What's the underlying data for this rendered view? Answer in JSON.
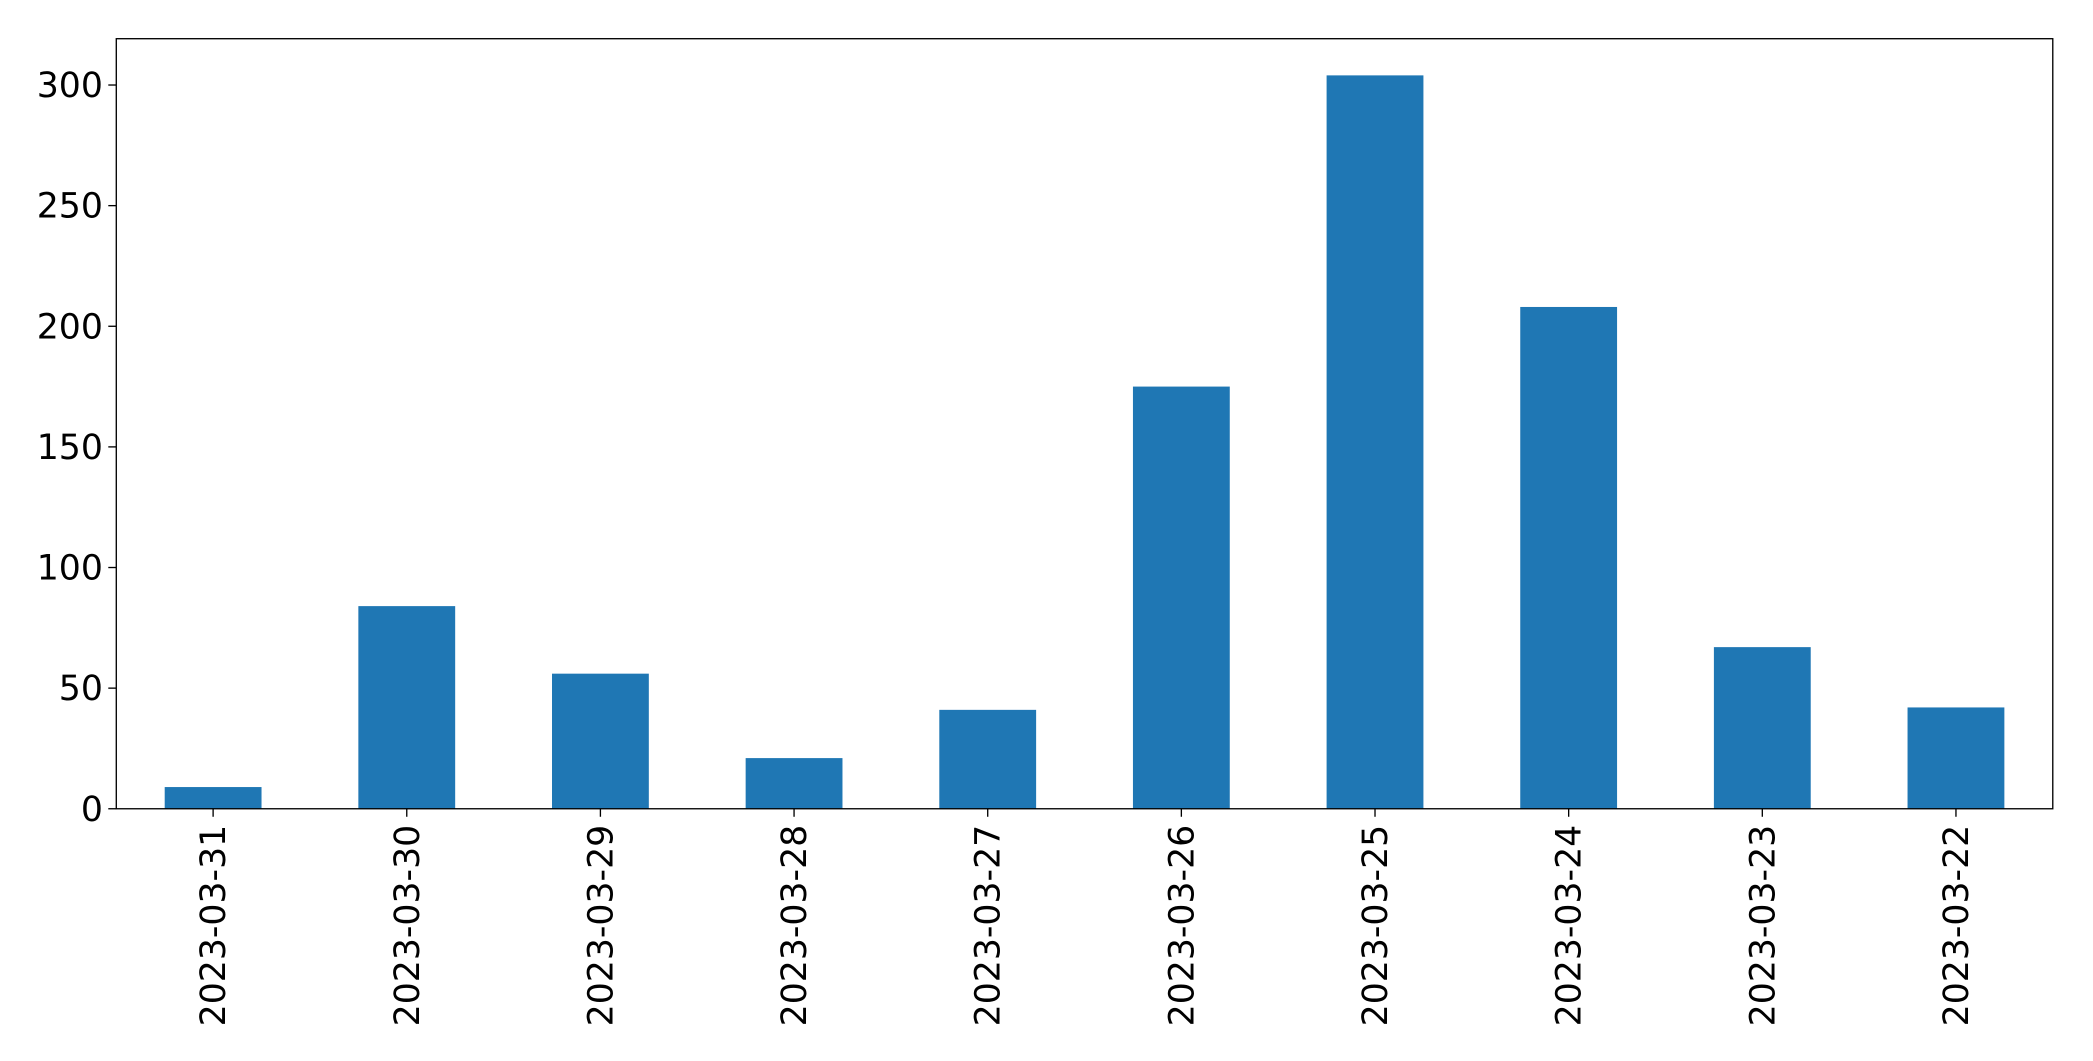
{
  "chart_data": {
    "type": "bar",
    "categories": [
      "2023-03-31",
      "2023-03-30",
      "2023-03-29",
      "2023-03-28",
      "2023-03-27",
      "2023-03-26",
      "2023-03-25",
      "2023-03-24",
      "2023-03-23",
      "2023-03-22"
    ],
    "values": [
      9,
      84,
      56,
      21,
      41,
      175,
      304,
      208,
      67,
      42
    ],
    "color": "#1f77b4",
    "ylim": [
      0,
      319.2
    ],
    "yticks": [
      0,
      50,
      100,
      150,
      200,
      250,
      300
    ],
    "grid": false
  }
}
